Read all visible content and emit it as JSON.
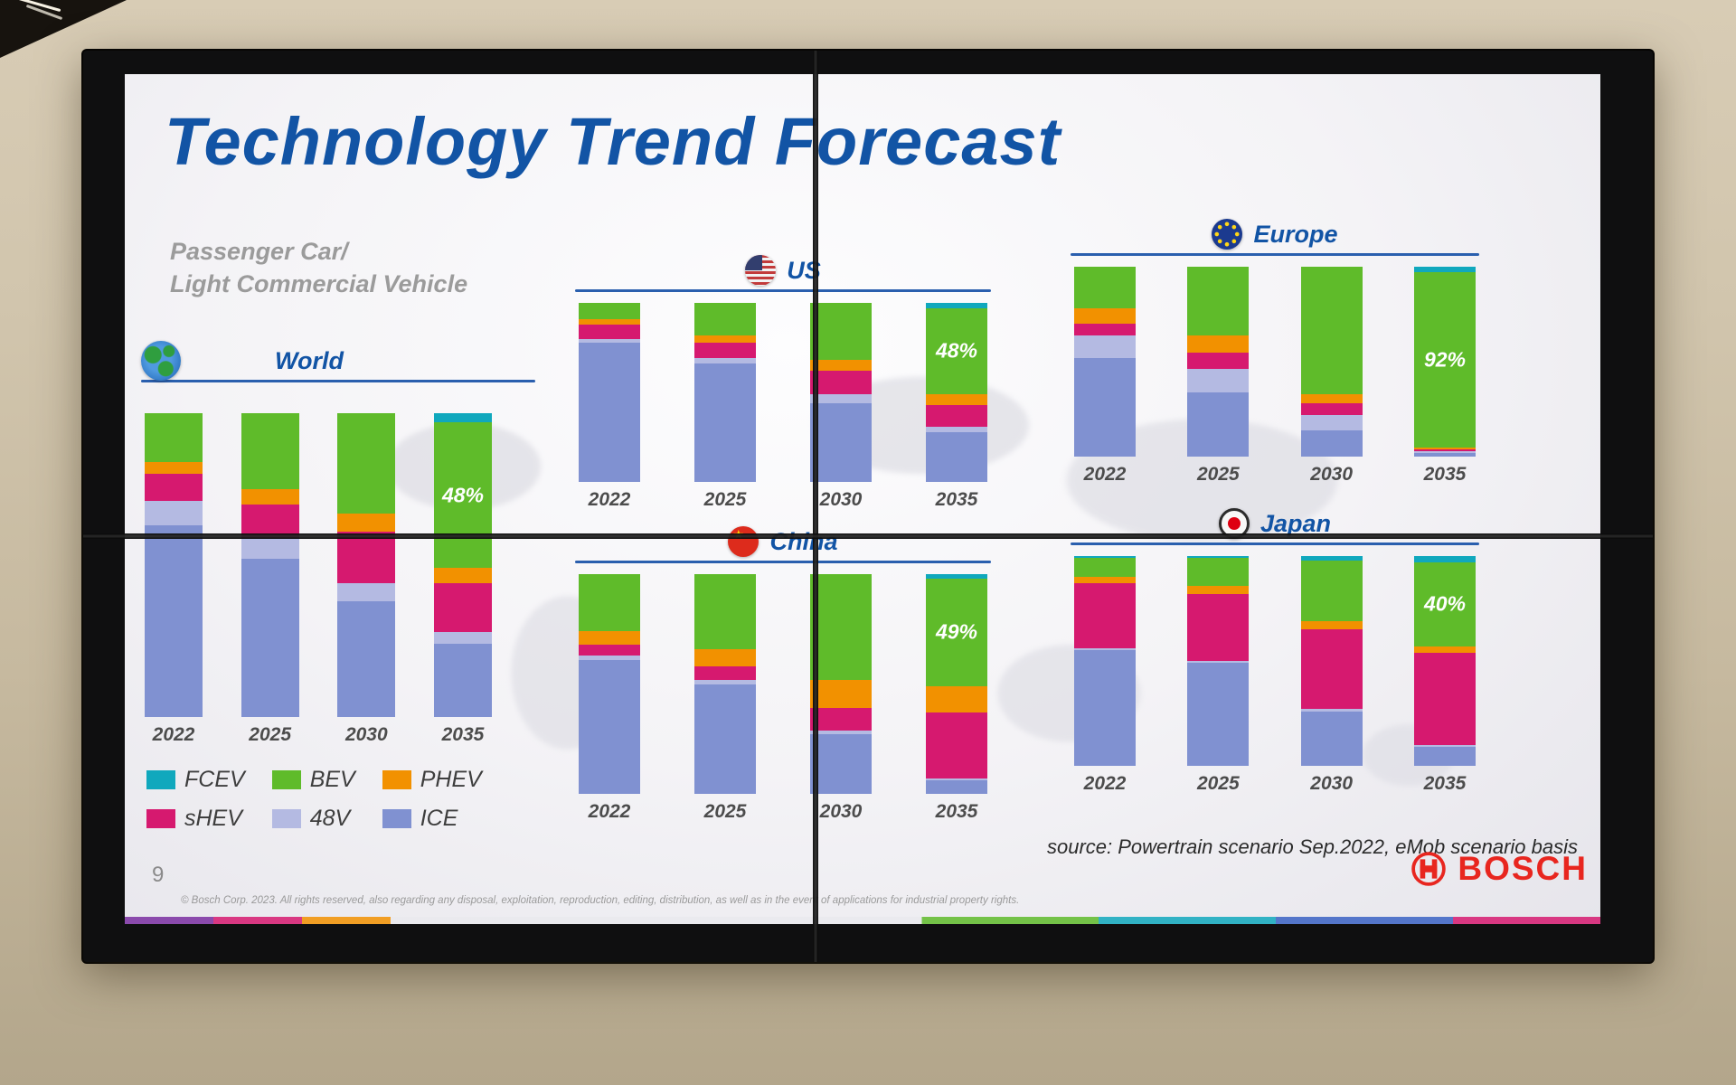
{
  "slide": {
    "title": "Technology Trend Forecast",
    "subtitle": [
      "Passenger Car/",
      "Light Commercial  Vehicle"
    ],
    "page_number": "9",
    "source": "source: Powertrain scenario Sep.2022, eMob scenario basis",
    "copyright": "© Bosch Corp. 2023. All rights reserved, also regarding any disposal, exploitation, reproduction, editing, distribution, as well as in the event of applications for industrial property rights.",
    "brand": "BOSCH"
  },
  "colors": {
    "FCEV": "#10a8bd",
    "BEV": "#5fbb2a",
    "PHEV": "#f29100",
    "sHEV": "#d6196f",
    "48V": "#b4bae2",
    "ICE": "#8091d1",
    "title_blue": "#1254a5",
    "bosch_red": "#e8261f"
  },
  "legend": {
    "items": [
      {
        "label": "FCEV"
      },
      {
        "label": "BEV"
      },
      {
        "label": "PHEV"
      },
      {
        "label": "sHEV"
      },
      {
        "label": "48V"
      },
      {
        "label": "ICE"
      }
    ]
  },
  "chart_data": [
    {
      "type": "bar",
      "stacked": true,
      "region": "World",
      "icon": "globe-icon",
      "unit": "%",
      "ylim": [
        0,
        100
      ],
      "categories": [
        "2022",
        "2025",
        "2030",
        "2035"
      ],
      "stack_order": [
        "ICE",
        "48V",
        "sHEV",
        "PHEV",
        "BEV",
        "FCEV"
      ],
      "series": [
        {
          "name": "ICE",
          "values": [
            63,
            52,
            38,
            24
          ]
        },
        {
          "name": "48V",
          "values": [
            8,
            7,
            6,
            4
          ]
        },
        {
          "name": "sHEV",
          "values": [
            9,
            11,
            17,
            16
          ]
        },
        {
          "name": "PHEV",
          "values": [
            4,
            5,
            6,
            5
          ]
        },
        {
          "name": "BEV",
          "values": [
            16,
            25,
            33,
            48
          ]
        },
        {
          "name": "FCEV",
          "values": [
            0,
            0,
            0,
            3
          ]
        }
      ],
      "annotation": {
        "text": "48%",
        "category_index": 3,
        "series": "BEV"
      }
    },
    {
      "type": "bar",
      "stacked": true,
      "region": "US",
      "icon": "us-flag-icon",
      "unit": "%",
      "ylim": [
        0,
        100
      ],
      "categories": [
        "2022",
        "2025",
        "2030",
        "2035"
      ],
      "stack_order": [
        "ICE",
        "48V",
        "sHEV",
        "PHEV",
        "BEV",
        "FCEV"
      ],
      "series": [
        {
          "name": "ICE",
          "values": [
            78,
            66,
            44,
            28
          ]
        },
        {
          "name": "48V",
          "values": [
            2,
            3,
            5,
            3
          ]
        },
        {
          "name": "sHEV",
          "values": [
            8,
            9,
            13,
            12
          ]
        },
        {
          "name": "PHEV",
          "values": [
            3,
            4,
            6,
            6
          ]
        },
        {
          "name": "BEV",
          "values": [
            9,
            18,
            32,
            48
          ]
        },
        {
          "name": "FCEV",
          "values": [
            0,
            0,
            0,
            3
          ]
        }
      ],
      "annotation": {
        "text": "48%",
        "category_index": 3,
        "series": "BEV"
      }
    },
    {
      "type": "bar",
      "stacked": true,
      "region": "Europe",
      "icon": "eu-flag-icon",
      "unit": "%",
      "ylim": [
        0,
        100
      ],
      "categories": [
        "2022",
        "2025",
        "2030",
        "2035"
      ],
      "stack_order": [
        "ICE",
        "48V",
        "sHEV",
        "PHEV",
        "BEV",
        "FCEV"
      ],
      "series": [
        {
          "name": "ICE",
          "values": [
            52,
            34,
            14,
            2
          ]
        },
        {
          "name": "48V",
          "values": [
            12,
            12,
            8,
            1
          ]
        },
        {
          "name": "sHEV",
          "values": [
            6,
            9,
            6,
            1
          ]
        },
        {
          "name": "PHEV",
          "values": [
            8,
            9,
            5,
            1
          ]
        },
        {
          "name": "BEV",
          "values": [
            22,
            36,
            67,
            92
          ]
        },
        {
          "name": "FCEV",
          "values": [
            0,
            0,
            0,
            3
          ]
        }
      ],
      "annotation": {
        "text": "92%",
        "category_index": 3,
        "series": "BEV"
      }
    },
    {
      "type": "bar",
      "stacked": true,
      "region": "China",
      "icon": "china-flag-icon",
      "unit": "%",
      "ylim": [
        0,
        100
      ],
      "categories": [
        "2022",
        "2025",
        "2030",
        "2035"
      ],
      "stack_order": [
        "ICE",
        "48V",
        "sHEV",
        "PHEV",
        "BEV",
        "FCEV"
      ],
      "series": [
        {
          "name": "ICE",
          "values": [
            61,
            50,
            27,
            6
          ]
        },
        {
          "name": "48V",
          "values": [
            2,
            2,
            2,
            1
          ]
        },
        {
          "name": "sHEV",
          "values": [
            5,
            6,
            10,
            30
          ]
        },
        {
          "name": "PHEV",
          "values": [
            6,
            8,
            13,
            12
          ]
        },
        {
          "name": "BEV",
          "values": [
            26,
            34,
            48,
            49
          ]
        },
        {
          "name": "FCEV",
          "values": [
            0,
            0,
            0,
            2
          ]
        }
      ],
      "annotation": {
        "text": "49%",
        "category_index": 3,
        "series": "BEV"
      }
    },
    {
      "type": "bar",
      "stacked": true,
      "region": "Japan",
      "icon": "japan-flag-icon",
      "unit": "%",
      "ylim": [
        0,
        100
      ],
      "categories": [
        "2022",
        "2025",
        "2030",
        "2035"
      ],
      "stack_order": [
        "ICE",
        "48V",
        "sHEV",
        "PHEV",
        "BEV",
        "FCEV"
      ],
      "series": [
        {
          "name": "ICE",
          "values": [
            55,
            49,
            26,
            9
          ]
        },
        {
          "name": "48V",
          "values": [
            1,
            1,
            1,
            1
          ]
        },
        {
          "name": "sHEV",
          "values": [
            31,
            32,
            38,
            44
          ]
        },
        {
          "name": "PHEV",
          "values": [
            3,
            4,
            4,
            3
          ]
        },
        {
          "name": "BEV",
          "values": [
            9,
            13,
            29,
            40
          ]
        },
        {
          "name": "FCEV",
          "values": [
            1,
            1,
            2,
            3
          ]
        }
      ],
      "annotation": {
        "text": "40%",
        "category_index": 3,
        "series": "BEV"
      }
    }
  ]
}
